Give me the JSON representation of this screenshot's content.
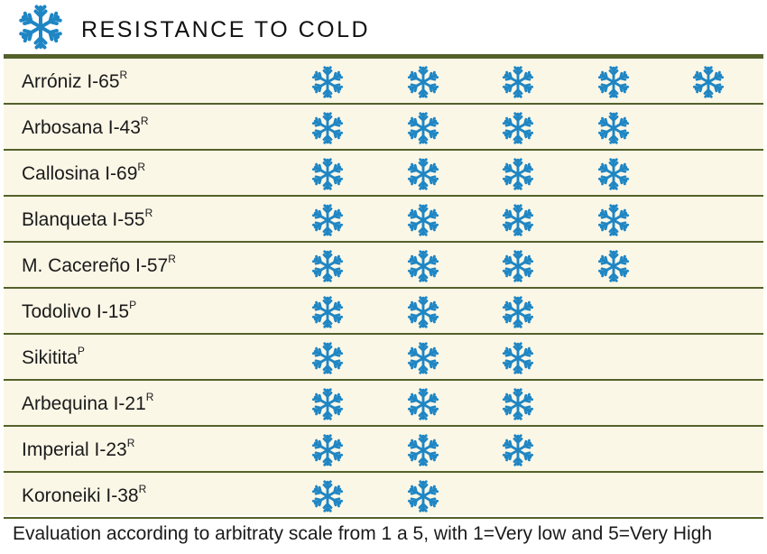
{
  "header": {
    "title": "RESISTANCE TO COLD",
    "icon": "snowflake-icon",
    "icon_color": "#1f86c4"
  },
  "chart_data": {
    "type": "table",
    "title": "RESISTANCE TO COLD",
    "scale": [
      1,
      5
    ],
    "rows": [
      {
        "name": "Arróniz I-65",
        "sup": "R",
        "value": 5
      },
      {
        "name": "Arbosana I-43",
        "sup": "R",
        "value": 4
      },
      {
        "name": "Callosina  I-69",
        "sup": "R",
        "value": 4
      },
      {
        "name": "Blanqueta I-55",
        "sup": "R",
        "value": 4
      },
      {
        "name": "M. Cacereño I-57",
        "sup": "R",
        "value": 4
      },
      {
        "name": "Todolivo I-15",
        "sup": "P",
        "value": 3
      },
      {
        "name": "Sikitita",
        "sup": "P",
        "value": 3
      },
      {
        "name": "Arbequina I-21",
        "sup": "R",
        "value": 3
      },
      {
        "name": "Imperial I-23",
        "sup": "R",
        "value": 3
      },
      {
        "name": "Koroneiki I-38",
        "sup": "R",
        "value": 2
      }
    ]
  },
  "footnote": "Evaluation according to arbitraty scale from 1 a 5, with 1=Very low and 5=Very High",
  "colors": {
    "rule": "#54612a",
    "row_background": "#fbf7e7",
    "snowflake": "#1f86c4"
  }
}
